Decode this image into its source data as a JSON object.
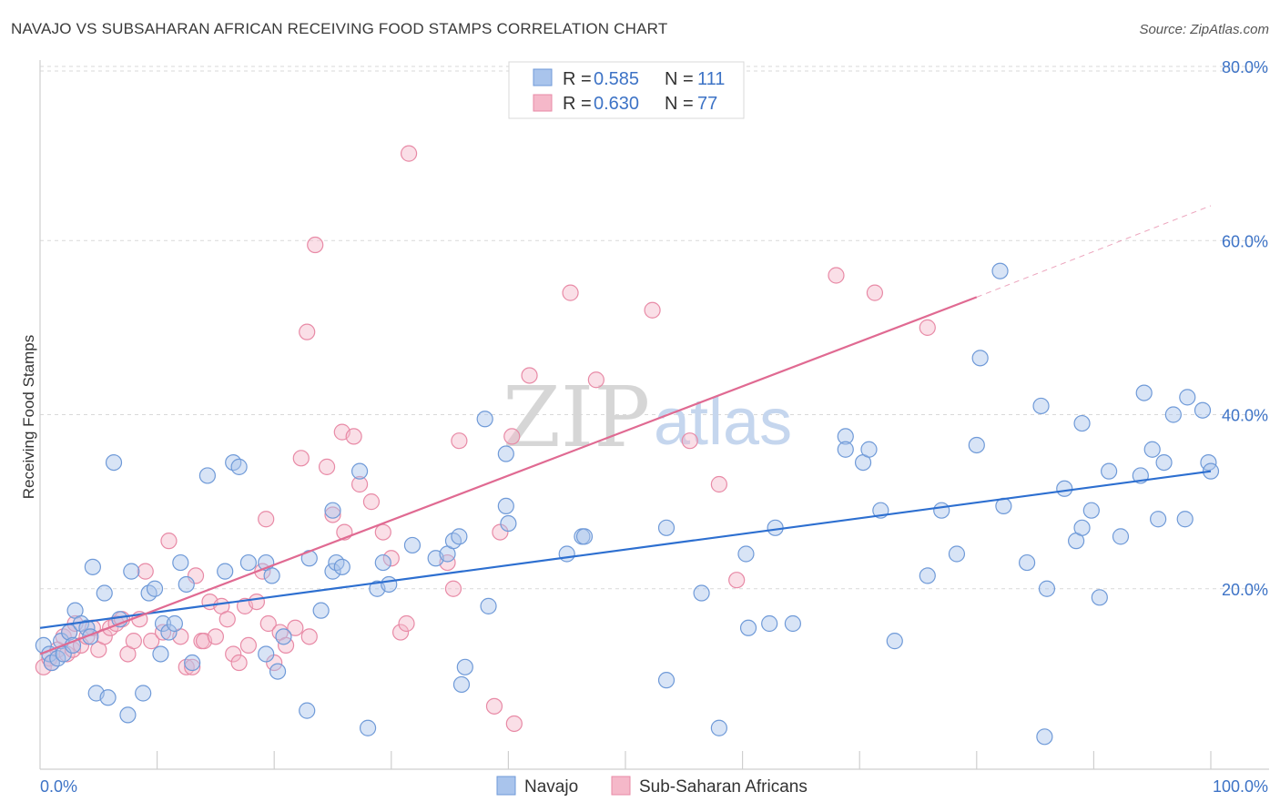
{
  "title": "NAVAJO VS SUBSAHARAN AFRICAN RECEIVING FOOD STAMPS CORRELATION CHART",
  "source": "Source: ZipAtlas.com",
  "watermark": {
    "zip": "ZIP",
    "atlas": "atlas"
  },
  "legend": {
    "rows": [
      {
        "r_label": "R =",
        "r_value": "0.585",
        "n_label": "N =",
        "n_value": "111",
        "color": "#a9c4ec"
      },
      {
        "r_label": "R =",
        "r_value": "0.630",
        "n_label": "N =",
        "n_value": "77",
        "color": "#f5b8c9"
      }
    ]
  },
  "bottom_legend": [
    "Navajo",
    "Sub-Saharan Africans"
  ],
  "colors": {
    "navajo_fill": "#a9c4ec",
    "navajo_stroke": "#6f9ad8",
    "navajo_line": "#2d6fd0",
    "ssa_fill": "#f5b8c9",
    "ssa_stroke": "#e88aa6",
    "ssa_line": "#e06a92",
    "grid": "#d9d9d9",
    "tick_text": "#3d73c6"
  },
  "chart_data": {
    "type": "scatter",
    "title": "NAVAJO VS SUBSAHARAN AFRICAN RECEIVING FOOD STAMPS CORRELATION CHART",
    "ylabel": "Receiving Food Stamps",
    "xlabel": "",
    "xlim": [
      0,
      100
    ],
    "ylim": [
      0,
      80
    ],
    "x_tick_labels": [
      "0.0%",
      "100.0%"
    ],
    "y_ticks": [
      20,
      40,
      60,
      80
    ],
    "y_tick_labels": [
      "20.0%",
      "40.0%",
      "60.0%",
      "80.0%"
    ],
    "grid": true,
    "legend_position": "top-center",
    "series": [
      {
        "name": "Navajo",
        "r": 0.585,
        "n": 111,
        "trend": {
          "x0": 0,
          "y0": 15.5,
          "x1": 100,
          "y1": 33.5
        },
        "points": [
          [
            0.3,
            13.5
          ],
          [
            0.8,
            12.5
          ],
          [
            1.0,
            11.5
          ],
          [
            1.5,
            12.0
          ],
          [
            1.8,
            14.0
          ],
          [
            2.0,
            12.5
          ],
          [
            2.5,
            15.0
          ],
          [
            2.8,
            13.5
          ],
          [
            3.0,
            17.5
          ],
          [
            3.5,
            16.0
          ],
          [
            4.0,
            15.5
          ],
          [
            4.3,
            14.5
          ],
          [
            4.5,
            22.5
          ],
          [
            4.8,
            8.0
          ],
          [
            5.5,
            19.5
          ],
          [
            5.8,
            7.5
          ],
          [
            6.3,
            34.5
          ],
          [
            6.8,
            16.5
          ],
          [
            7.5,
            5.5
          ],
          [
            7.8,
            22.0
          ],
          [
            8.8,
            8.0
          ],
          [
            9.3,
            19.5
          ],
          [
            9.8,
            20.0
          ],
          [
            10.3,
            12.5
          ],
          [
            10.5,
            16.0
          ],
          [
            11.0,
            15.0
          ],
          [
            11.5,
            16.0
          ],
          [
            12.0,
            23.0
          ],
          [
            12.5,
            20.5
          ],
          [
            13.0,
            11.5
          ],
          [
            14.3,
            33.0
          ],
          [
            15.8,
            22.0
          ],
          [
            16.5,
            34.5
          ],
          [
            17.0,
            34.0
          ],
          [
            17.8,
            23.0
          ],
          [
            19.3,
            12.5
          ],
          [
            19.3,
            23.0
          ],
          [
            19.8,
            21.5
          ],
          [
            20.3,
            10.5
          ],
          [
            20.8,
            14.5
          ],
          [
            22.8,
            6.0
          ],
          [
            23.0,
            23.5
          ],
          [
            24.0,
            17.5
          ],
          [
            25.0,
            22.0
          ],
          [
            25.0,
            29.0
          ],
          [
            25.3,
            23.0
          ],
          [
            25.8,
            22.5
          ],
          [
            27.3,
            33.5
          ],
          [
            28.0,
            4.0
          ],
          [
            28.8,
            20.0
          ],
          [
            29.3,
            23.0
          ],
          [
            29.8,
            20.5
          ],
          [
            31.8,
            25.0
          ],
          [
            33.8,
            23.5
          ],
          [
            34.8,
            24.0
          ],
          [
            35.3,
            25.5
          ],
          [
            35.8,
            26.0
          ],
          [
            36.0,
            9.0
          ],
          [
            36.3,
            11.0
          ],
          [
            38.0,
            39.5
          ],
          [
            38.3,
            18.0
          ],
          [
            39.8,
            29.5
          ],
          [
            39.8,
            35.5
          ],
          [
            40.0,
            27.5
          ],
          [
            45.0,
            24.0
          ],
          [
            46.3,
            26.0
          ],
          [
            46.5,
            26.0
          ],
          [
            53.5,
            27.0
          ],
          [
            53.5,
            9.5
          ],
          [
            56.5,
            19.5
          ],
          [
            58.0,
            4.0
          ],
          [
            60.3,
            24.0
          ],
          [
            60.5,
            15.5
          ],
          [
            62.3,
            16.0
          ],
          [
            62.8,
            27.0
          ],
          [
            64.3,
            16.0
          ],
          [
            68.8,
            37.5
          ],
          [
            68.8,
            36.0
          ],
          [
            70.3,
            34.5
          ],
          [
            70.8,
            36.0
          ],
          [
            71.8,
            29.0
          ],
          [
            73.0,
            14.0
          ],
          [
            75.8,
            21.5
          ],
          [
            77.0,
            29.0
          ],
          [
            78.3,
            24.0
          ],
          [
            80.0,
            36.5
          ],
          [
            80.3,
            46.5
          ],
          [
            82.0,
            56.5
          ],
          [
            82.3,
            29.5
          ],
          [
            84.3,
            23.0
          ],
          [
            85.5,
            41.0
          ],
          [
            85.8,
            3.0
          ],
          [
            86.0,
            20.0
          ],
          [
            87.5,
            31.5
          ],
          [
            88.5,
            25.5
          ],
          [
            89.0,
            27.0
          ],
          [
            89.0,
            39.0
          ],
          [
            89.8,
            29.0
          ],
          [
            90.5,
            19.0
          ],
          [
            91.3,
            33.5
          ],
          [
            92.3,
            26.0
          ],
          [
            94.0,
            33.0
          ],
          [
            94.3,
            42.5
          ],
          [
            95.0,
            36.0
          ],
          [
            95.5,
            28.0
          ],
          [
            96.0,
            34.5
          ],
          [
            96.8,
            40.0
          ],
          [
            97.8,
            28.0
          ],
          [
            98.0,
            42.0
          ],
          [
            99.3,
            40.5
          ],
          [
            99.8,
            34.5
          ],
          [
            100.0,
            33.5
          ]
        ]
      },
      {
        "name": "Sub-Saharan Africans",
        "r": 0.63,
        "n": 77,
        "trend": {
          "x0": 0,
          "y0": 12.5,
          "x1": 80,
          "y1": 53.5
        },
        "trend_extended": {
          "x0": 80,
          "y0": 53.5,
          "x1": 100,
          "y1": 64.0
        },
        "points": [
          [
            0.3,
            11.0
          ],
          [
            0.8,
            12.0
          ],
          [
            1.0,
            11.5
          ],
          [
            1.5,
            13.0
          ],
          [
            2.0,
            14.5
          ],
          [
            2.3,
            12.5
          ],
          [
            2.5,
            15.0
          ],
          [
            2.8,
            13.0
          ],
          [
            3.0,
            16.0
          ],
          [
            3.5,
            13.5
          ],
          [
            4.0,
            14.5
          ],
          [
            4.5,
            15.5
          ],
          [
            5.0,
            13.0
          ],
          [
            5.5,
            14.5
          ],
          [
            6.0,
            15.5
          ],
          [
            6.5,
            16.0
          ],
          [
            7.0,
            16.5
          ],
          [
            7.5,
            12.5
          ],
          [
            8.0,
            14.0
          ],
          [
            8.5,
            16.5
          ],
          [
            9.0,
            22.0
          ],
          [
            9.5,
            14.0
          ],
          [
            10.5,
            15.0
          ],
          [
            11.0,
            25.5
          ],
          [
            12.0,
            14.5
          ],
          [
            12.5,
            11.0
          ],
          [
            13.0,
            11.0
          ],
          [
            13.3,
            21.5
          ],
          [
            13.8,
            14.0
          ],
          [
            14.0,
            14.0
          ],
          [
            14.5,
            18.5
          ],
          [
            15.0,
            14.5
          ],
          [
            15.5,
            18.0
          ],
          [
            16.0,
            16.5
          ],
          [
            16.5,
            12.5
          ],
          [
            17.0,
            11.5
          ],
          [
            17.5,
            18.0
          ],
          [
            17.8,
            13.5
          ],
          [
            18.5,
            18.5
          ],
          [
            19.0,
            22.0
          ],
          [
            19.3,
            28.0
          ],
          [
            19.5,
            16.0
          ],
          [
            20.0,
            11.5
          ],
          [
            20.5,
            15.0
          ],
          [
            21.0,
            13.5
          ],
          [
            21.8,
            15.5
          ],
          [
            22.3,
            35.0
          ],
          [
            22.8,
            49.5
          ],
          [
            23.0,
            14.5
          ],
          [
            23.5,
            59.5
          ],
          [
            24.5,
            34.0
          ],
          [
            25.0,
            28.5
          ],
          [
            25.8,
            38.0
          ],
          [
            26.0,
            26.5
          ],
          [
            26.8,
            37.5
          ],
          [
            27.3,
            32.0
          ],
          [
            28.3,
            30.0
          ],
          [
            29.3,
            26.5
          ],
          [
            30.0,
            23.5
          ],
          [
            30.8,
            15.0
          ],
          [
            31.3,
            16.0
          ],
          [
            31.5,
            70.0
          ],
          [
            34.8,
            23.0
          ],
          [
            35.3,
            20.0
          ],
          [
            35.8,
            37.0
          ],
          [
            38.8,
            6.5
          ],
          [
            39.3,
            26.5
          ],
          [
            40.3,
            37.5
          ],
          [
            40.5,
            4.5
          ],
          [
            41.8,
            44.5
          ],
          [
            45.3,
            54.0
          ],
          [
            47.5,
            44.0
          ],
          [
            52.3,
            52.0
          ],
          [
            55.5,
            37.0
          ],
          [
            58.0,
            32.0
          ],
          [
            59.5,
            21.0
          ],
          [
            68.0,
            56.0
          ],
          [
            71.3,
            54.0
          ],
          [
            75.8,
            50.0
          ]
        ]
      }
    ]
  }
}
